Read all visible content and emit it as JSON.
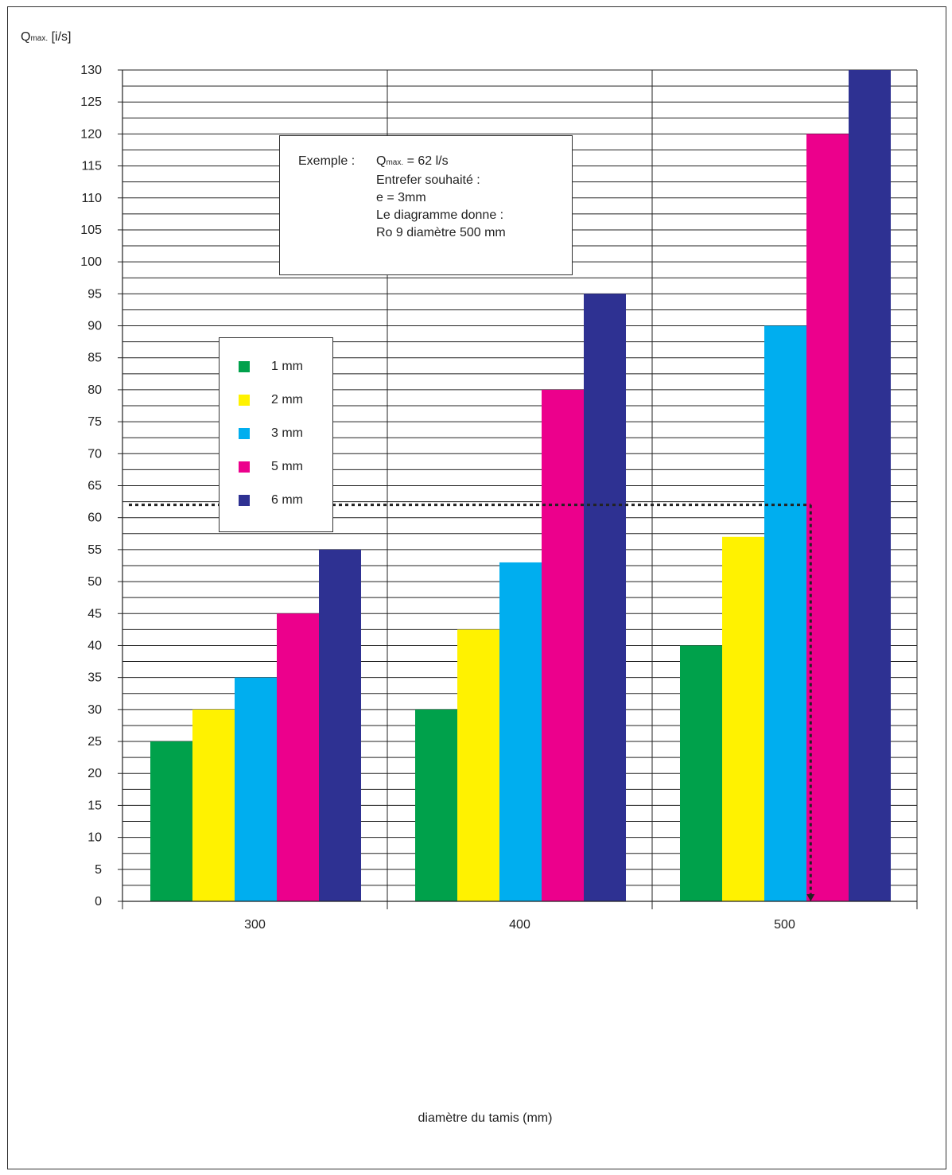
{
  "chart_data": {
    "type": "bar",
    "title": "",
    "ylabel": {
      "main": "Q",
      "sub": "max.",
      "unit": " [i/s]"
    },
    "xlabel": "diamètre du tamis (mm)",
    "categories": [
      "300",
      "400",
      "500"
    ],
    "ylim": [
      0,
      130
    ],
    "ytick_step": 5,
    "grid": true,
    "series": [
      {
        "name": "1 mm",
        "color": "#00a14b",
        "values": [
          25,
          30,
          40
        ]
      },
      {
        "name": "2 mm",
        "color": "#fff200",
        "values": [
          30,
          42.5,
          57
        ]
      },
      {
        "name": "3 mm",
        "color": "#00aeef",
        "values": [
          35,
          53,
          90
        ]
      },
      {
        "name": "5 mm",
        "color": "#ec008c",
        "values": [
          45,
          80,
          120
        ]
      },
      {
        "name": "6 mm",
        "color": "#2e3192",
        "values": [
          55,
          95,
          130
        ]
      }
    ],
    "legend_position": "left",
    "reference_line": {
      "y": 62,
      "category": "500"
    },
    "annotation": {
      "label": "Exemple :",
      "q_main": "Q",
      "q_sub": "max.",
      "q_value": " = 62 l/s",
      "lines": [
        "Entrefer souhaité :",
        "e = 3mm",
        "Le diagramme donne :",
        "Ro 9 diamètre 500 mm"
      ]
    }
  }
}
